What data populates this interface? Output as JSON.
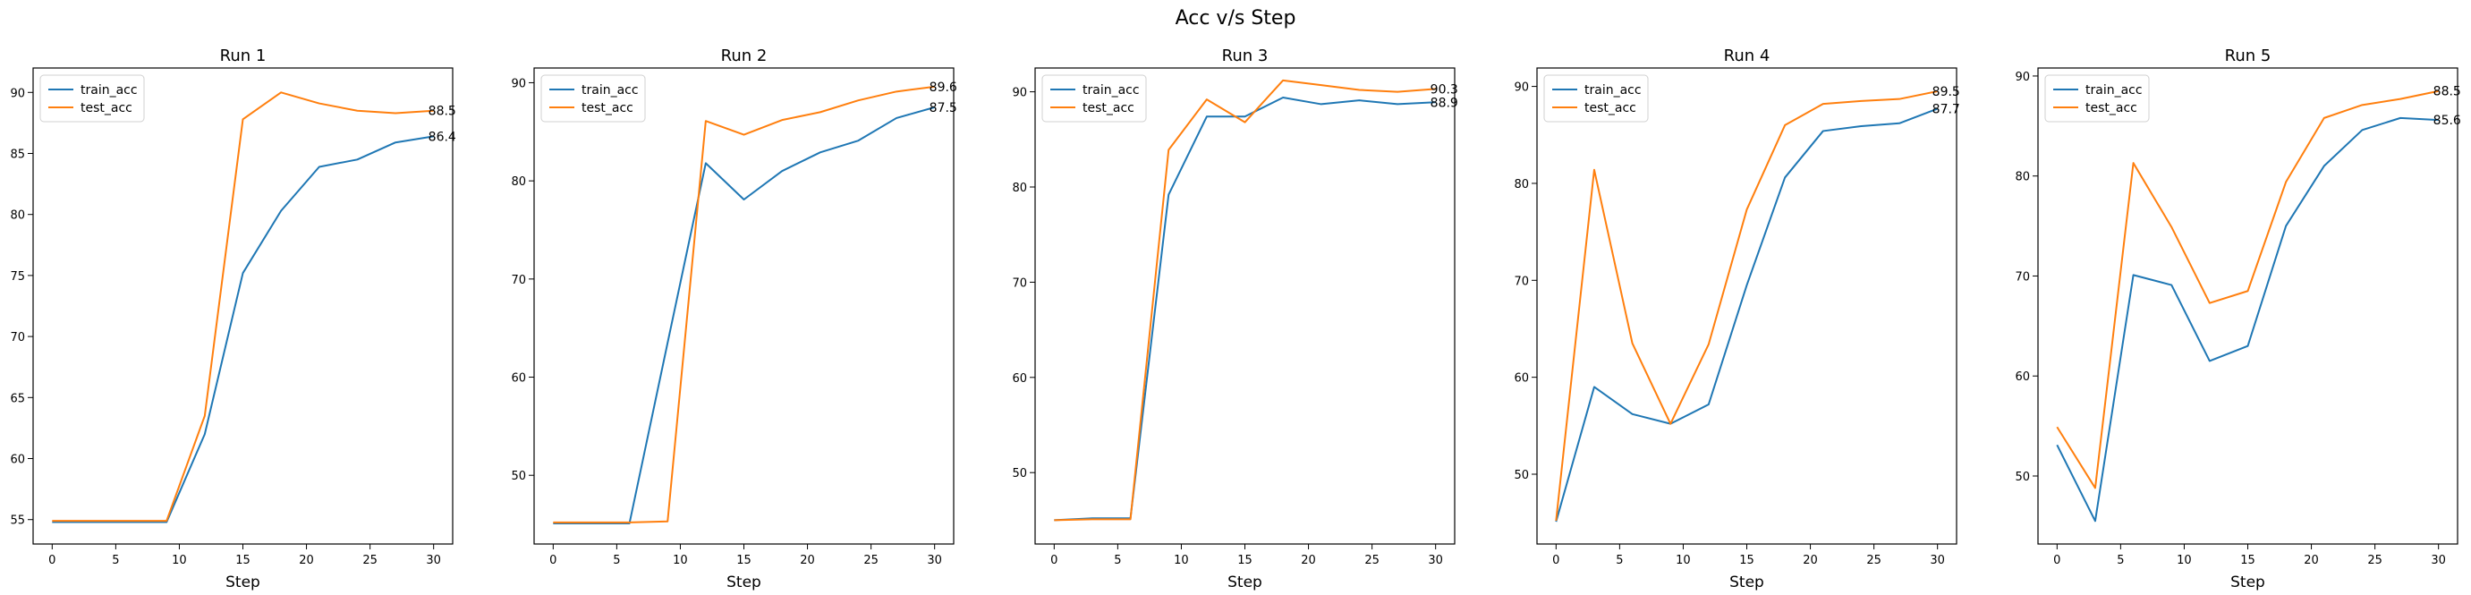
{
  "figure": {
    "title": "Acc v/s Step",
    "colors": {
      "train_acc": "#1f77b4",
      "test_acc": "#ff7f0e",
      "axes": "#000000",
      "background": "#ffffff"
    }
  },
  "chart_data": [
    {
      "type": "line",
      "title": "Run 1",
      "xlabel": "Step",
      "ylabel": "",
      "x": [
        0,
        3,
        6,
        9,
        12,
        15,
        18,
        21,
        24,
        27,
        30
      ],
      "xlim": [
        -1.5,
        31.5
      ],
      "ylim": [
        53.0,
        92.0
      ],
      "xticks": [
        0,
        5,
        10,
        15,
        20,
        25,
        30
      ],
      "yticks": [
        55,
        60,
        65,
        70,
        75,
        80,
        85,
        90
      ],
      "legend": [
        "train_acc",
        "test_acc"
      ],
      "legend_loc": "upper left",
      "grid": false,
      "series": [
        {
          "name": "train_acc",
          "color": "#1f77b4",
          "values": [
            54.8,
            54.8,
            54.8,
            54.8,
            62.0,
            75.2,
            80.3,
            83.9,
            84.5,
            85.9,
            86.4
          ],
          "end_label": "86.4"
        },
        {
          "name": "test_acc",
          "color": "#ff7f0e",
          "values": [
            54.9,
            54.9,
            54.9,
            54.9,
            63.5,
            87.8,
            90.0,
            89.1,
            88.5,
            88.3,
            88.5
          ],
          "end_label": "88.5"
        }
      ]
    },
    {
      "type": "line",
      "title": "Run 2",
      "xlabel": "Step",
      "ylabel": "",
      "x": [
        0,
        3,
        6,
        9,
        12,
        15,
        18,
        21,
        24,
        27,
        30
      ],
      "xlim": [
        -1.5,
        31.5
      ],
      "ylim": [
        43.0,
        91.5
      ],
      "xticks": [
        0,
        5,
        10,
        15,
        20,
        25,
        30
      ],
      "yticks": [
        50,
        60,
        70,
        80,
        90
      ],
      "legend": [
        "train_acc",
        "test_acc"
      ],
      "legend_loc": "upper left",
      "grid": false,
      "series": [
        {
          "name": "train_acc",
          "color": "#1f77b4",
          "values": [
            45.1,
            45.1,
            45.1,
            63.5,
            81.8,
            78.1,
            81.0,
            82.9,
            84.1,
            86.4,
            87.5
          ],
          "end_label": "87.5"
        },
        {
          "name": "test_acc",
          "color": "#ff7f0e",
          "values": [
            45.2,
            45.2,
            45.2,
            45.3,
            86.1,
            84.7,
            86.2,
            87.0,
            88.2,
            89.1,
            89.6
          ],
          "end_label": "89.6"
        }
      ]
    },
    {
      "type": "line",
      "title": "Run 3",
      "xlabel": "Step",
      "ylabel": "",
      "x": [
        0,
        3,
        6,
        9,
        12,
        15,
        18,
        21,
        24,
        27,
        30
      ],
      "xlim": [
        -1.5,
        31.5
      ],
      "ylim": [
        42.5,
        92.5
      ],
      "xticks": [
        0,
        5,
        10,
        15,
        20,
        25,
        30
      ],
      "yticks": [
        50,
        60,
        70,
        80,
        90
      ],
      "legend": [
        "train_acc",
        "test_acc"
      ],
      "legend_loc": "upper left",
      "grid": false,
      "series": [
        {
          "name": "train_acc",
          "color": "#1f77b4",
          "values": [
            45.0,
            45.2,
            45.2,
            79.2,
            87.4,
            87.4,
            89.4,
            88.7,
            89.1,
            88.7,
            88.9
          ],
          "end_label": "88.9"
        },
        {
          "name": "test_acc",
          "color": "#ff7f0e",
          "values": [
            45.0,
            45.1,
            45.1,
            83.9,
            89.2,
            86.8,
            91.2,
            90.7,
            90.2,
            90.0,
            90.3
          ],
          "end_label": "90.3"
        }
      ]
    },
    {
      "type": "line",
      "title": "Run 4",
      "xlabel": "Step",
      "ylabel": "",
      "x": [
        0,
        3,
        6,
        9,
        12,
        15,
        18,
        21,
        24,
        27,
        30
      ],
      "xlim": [
        -1.5,
        31.5
      ],
      "ylim": [
        42.8,
        91.9
      ],
      "xticks": [
        0,
        5,
        10,
        15,
        20,
        25,
        30
      ],
      "yticks": [
        50,
        60,
        70,
        80,
        90
      ],
      "legend": [
        "train_acc",
        "test_acc"
      ],
      "legend_loc": "upper left",
      "grid": false,
      "series": [
        {
          "name": "train_acc",
          "color": "#1f77b4",
          "values": [
            45.1,
            59.0,
            56.2,
            55.2,
            57.2,
            69.5,
            80.6,
            85.4,
            85.9,
            86.2,
            87.7
          ],
          "end_label": "87.7"
        },
        {
          "name": "test_acc",
          "color": "#ff7f0e",
          "values": [
            45.2,
            81.4,
            63.5,
            55.2,
            63.4,
            77.3,
            86.0,
            88.2,
            88.5,
            88.7,
            89.5
          ],
          "end_label": "89.5"
        }
      ]
    },
    {
      "type": "line",
      "title": "Run 5",
      "xlabel": "Step",
      "ylabel": "",
      "x": [
        0,
        3,
        6,
        9,
        12,
        15,
        18,
        21,
        24,
        27,
        30
      ],
      "xlim": [
        -1.5,
        31.5
      ],
      "ylim": [
        43.2,
        90.8
      ],
      "xticks": [
        0,
        5,
        10,
        15,
        20,
        25,
        30
      ],
      "yticks": [
        50,
        60,
        70,
        80,
        90
      ],
      "legend": [
        "train_acc",
        "test_acc"
      ],
      "legend_loc": "upper left",
      "grid": false,
      "series": [
        {
          "name": "train_acc",
          "color": "#1f77b4",
          "values": [
            53.1,
            45.5,
            70.1,
            69.1,
            61.5,
            63.0,
            75.0,
            81.0,
            84.6,
            85.8,
            85.6
          ],
          "end_label": "85.6"
        },
        {
          "name": "test_acc",
          "color": "#ff7f0e",
          "values": [
            54.9,
            48.8,
            81.3,
            74.9,
            67.3,
            68.5,
            79.4,
            85.8,
            87.1,
            87.7,
            88.5
          ],
          "end_label": "88.5"
        }
      ]
    }
  ]
}
